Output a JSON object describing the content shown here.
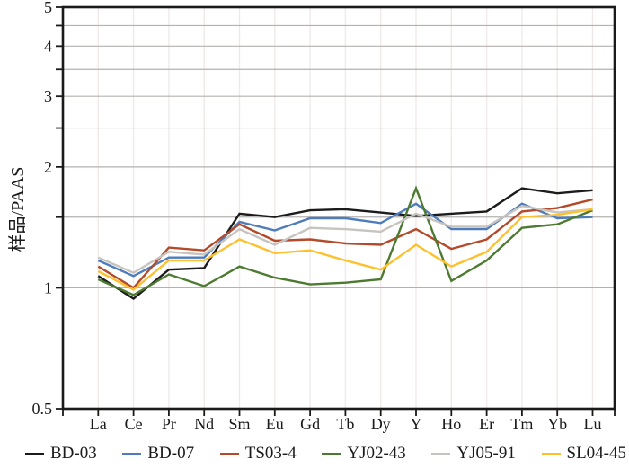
{
  "colors": {
    "background": "#ffffff",
    "frame": "#1a1a1a",
    "horizontal_grid": "#b5b0b0",
    "vertical_grid": "#f1e9e8",
    "text": "#1a1a1a"
  },
  "chart_data": {
    "type": "line",
    "title": "",
    "xlabel": "",
    "ylabel": "样品/PAAS",
    "y_scale": "log",
    "ylim": [
      0.5,
      5
    ],
    "grid": true,
    "legend_position": "bottom",
    "y_ticks": [
      {
        "value": 5,
        "label": "5"
      },
      {
        "value": 4,
        "label": "4"
      },
      {
        "value": 3,
        "label": "3"
      },
      {
        "value": 2,
        "label": "2"
      },
      {
        "value": 1,
        "label": "1"
      },
      {
        "value": 0.5,
        "label": "0.5"
      }
    ],
    "y_gridline_values": [
      1,
      1.5,
      2,
      2.5,
      3,
      3.5,
      4,
      4.5
    ],
    "y_tick_mark_values": [
      0.5,
      1,
      1.5,
      2,
      2.5,
      3,
      3.5,
      4,
      4.5,
      5
    ],
    "categories": [
      "La",
      "Ce",
      "Pr",
      "Nd",
      "Sm",
      "Eu",
      "Gd",
      "Tb",
      "Dy",
      "Y",
      "Ho",
      "Er",
      "Tm",
      "Yb",
      "Lu"
    ],
    "series": [
      {
        "name": "BD-03",
        "color": "#1b1b1b",
        "values": [
          1.07,
          0.94,
          1.11,
          1.12,
          1.53,
          1.5,
          1.56,
          1.57,
          1.54,
          1.51,
          1.53,
          1.55,
          1.77,
          1.72,
          1.75
        ]
      },
      {
        "name": "BD-07",
        "color": "#4f7dbc",
        "values": [
          1.17,
          1.07,
          1.19,
          1.19,
          1.46,
          1.39,
          1.49,
          1.49,
          1.45,
          1.62,
          1.4,
          1.4,
          1.62,
          1.49,
          1.5
        ]
      },
      {
        "name": "TS03-4",
        "color": "#b34a2a",
        "values": [
          1.13,
          1.0,
          1.26,
          1.24,
          1.44,
          1.31,
          1.32,
          1.29,
          1.28,
          1.4,
          1.25,
          1.32,
          1.55,
          1.58,
          1.66
        ]
      },
      {
        "name": "YJ02-43",
        "color": "#4d7a31",
        "values": [
          1.05,
          0.96,
          1.08,
          1.01,
          1.13,
          1.06,
          1.02,
          1.03,
          1.05,
          1.77,
          1.04,
          1.17,
          1.41,
          1.44,
          1.56
        ]
      },
      {
        "name": "YJ05-91",
        "color": "#c7c4c0",
        "values": [
          1.19,
          1.09,
          1.23,
          1.21,
          1.4,
          1.28,
          1.41,
          1.4,
          1.38,
          1.53,
          1.42,
          1.42,
          1.6,
          1.54,
          1.57
        ]
      },
      {
        "name": "SL04-45",
        "color": "#fdc12d",
        "values": [
          1.1,
          0.99,
          1.17,
          1.17,
          1.32,
          1.22,
          1.24,
          1.17,
          1.11,
          1.28,
          1.13,
          1.23,
          1.5,
          1.52,
          1.57
        ]
      }
    ]
  }
}
